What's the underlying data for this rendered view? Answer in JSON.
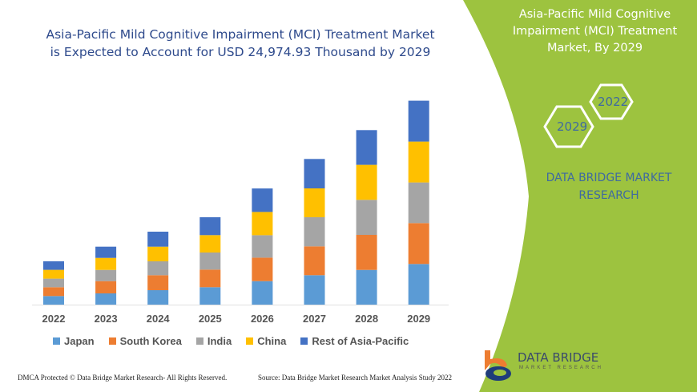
{
  "title": "Asia-Pacific Mild Cognitive Impairment (MCI) Treatment Market is Expected to Account for USD 24,974.93 Thousand by 2029",
  "title_line1": "Asia-Pacific Mild Cognitive Impairment (MCI) Treatment Market",
  "title_line2": "is Expected to Account for USD 24,974.93 Thousand by 2029",
  "panel": {
    "title_line1": "Asia-Pacific Mild Cognitive",
    "title_line2": "Impairment (MCI) Treatment",
    "title_line3": "Market, By 2029",
    "hex_left": "2029",
    "hex_right": "2022",
    "brand_line1": "DATA BRIDGE MARKET",
    "brand_line2": "RESEARCH",
    "bg_color": "#9dc33f"
  },
  "logo": {
    "name": "DATA BRIDGE",
    "sub": "MARKET RESEARCH"
  },
  "watermark": {
    "line1": "DATA BRIDGE",
    "line2": "MARKET RESEARCH"
  },
  "footer": {
    "left": "DMCA Protected © Data Bridge Market Research- All Rights Reserved.",
    "right": "Source: Data Bridge Market Research Market Analysis Study 2022"
  },
  "chart_data": {
    "type": "bar",
    "stacked": true,
    "categories": [
      "2022",
      "2023",
      "2024",
      "2025",
      "2026",
      "2027",
      "2028",
      "2029"
    ],
    "series": [
      {
        "name": "Japan",
        "color": "#5b9bd5",
        "values": [
          10.7,
          14,
          18,
          21.7,
          29.3,
          36.7,
          43.3,
          50.7
        ]
      },
      {
        "name": "South Korea",
        "color": "#ed7d31",
        "values": [
          11,
          15.3,
          18.7,
          22,
          29.3,
          36,
          43.7,
          51
        ]
      },
      {
        "name": "India",
        "color": "#a5a5a5",
        "values": [
          10.7,
          14,
          17.3,
          21.3,
          28,
          36.3,
          43.7,
          50.7
        ]
      },
      {
        "name": "China",
        "color": "#ffc000",
        "values": [
          11,
          15,
          18.3,
          21.7,
          29,
          36,
          43.7,
          51
        ]
      },
      {
        "name": "Rest of Asia-Pacific",
        "color": "#4472c4",
        "values": [
          10.7,
          14,
          18.7,
          22.3,
          29.3,
          36.7,
          43.3,
          51
        ]
      }
    ],
    "ylabel": "",
    "xlabel": "",
    "grid": false,
    "legend": "bottom",
    "y_axis_shown": false
  }
}
